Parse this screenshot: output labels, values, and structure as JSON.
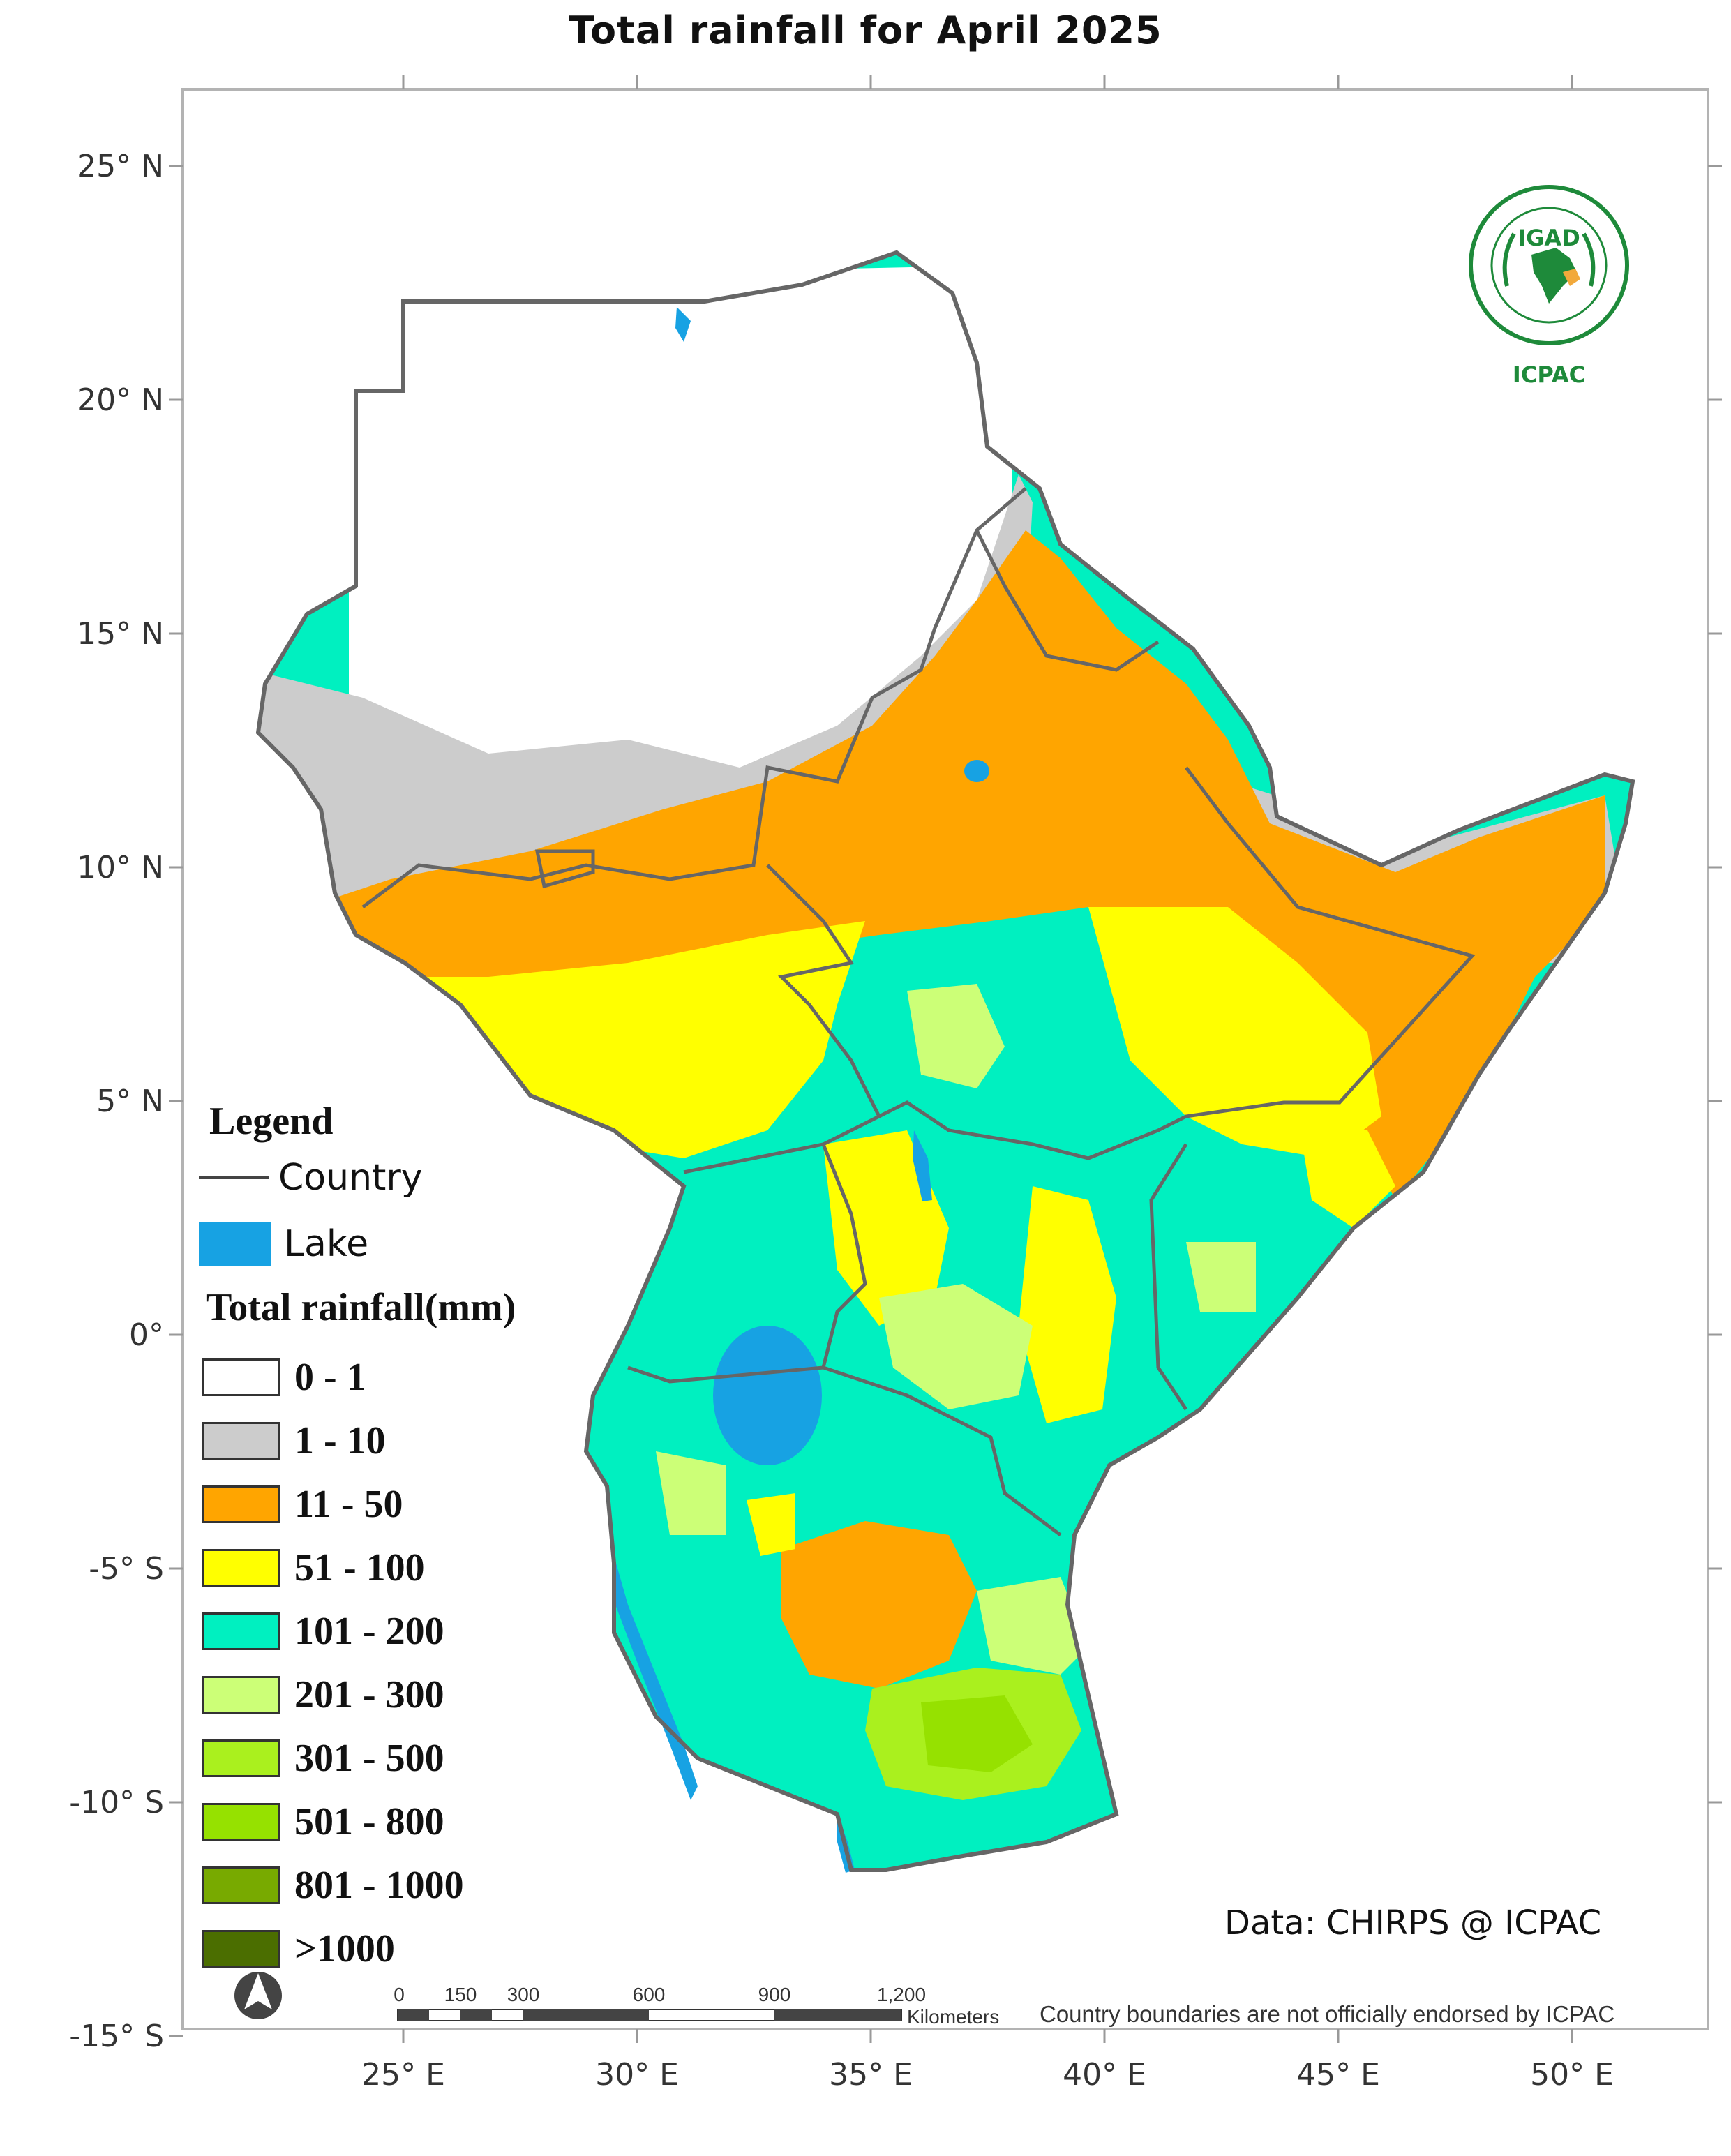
{
  "title": "Total rainfall  for April  2025",
  "map": {
    "lat_ticks": [
      "25° N",
      "20° N",
      "15° N",
      "10° N",
      "5° N",
      "0°",
      "-5° S",
      "-10° S",
      "-15° S"
    ],
    "lon_ticks": [
      "25° E",
      "30° E",
      "35° E",
      "40° E",
      "45° E",
      "50° E"
    ]
  },
  "legend": {
    "title": "Legend",
    "country_label": "Country",
    "lake_label": "Lake",
    "rainfall_title": "Total rainfall(mm)",
    "bins": [
      {
        "label": "0 - 1",
        "color": "#ffffff"
      },
      {
        "label": "1 - 10",
        "color": "#cccccc"
      },
      {
        "label": "11 - 50",
        "color": "#ffa500"
      },
      {
        "label": "51 - 100",
        "color": "#ffff00"
      },
      {
        "label": "101 - 200",
        "color": "#00f0c0"
      },
      {
        "label": "201 - 300",
        "color": "#ccff77"
      },
      {
        "label": "301 - 500",
        "color": "#aaf01e"
      },
      {
        "label": "501 - 800",
        "color": "#96e100"
      },
      {
        "label": "801 - 1000",
        "color": "#78aa00"
      },
      {
        "label": ">1000",
        "color": "#4b6e00"
      }
    ]
  },
  "scale_bar": {
    "labels": [
      "0",
      "150",
      "300",
      "600",
      "900",
      "1,200"
    ],
    "unit": "Kilometers"
  },
  "credit": "Data: CHIRPS @ ICPAC",
  "disclaimer": "Country boundaries are not officially endorsed by ICPAC",
  "logo": {
    "top": "IGAD",
    "bottom": "ICPAC"
  },
  "colors": {
    "lake": "#17a2e3",
    "border": "#666666",
    "frame": "#b3b3b3"
  }
}
